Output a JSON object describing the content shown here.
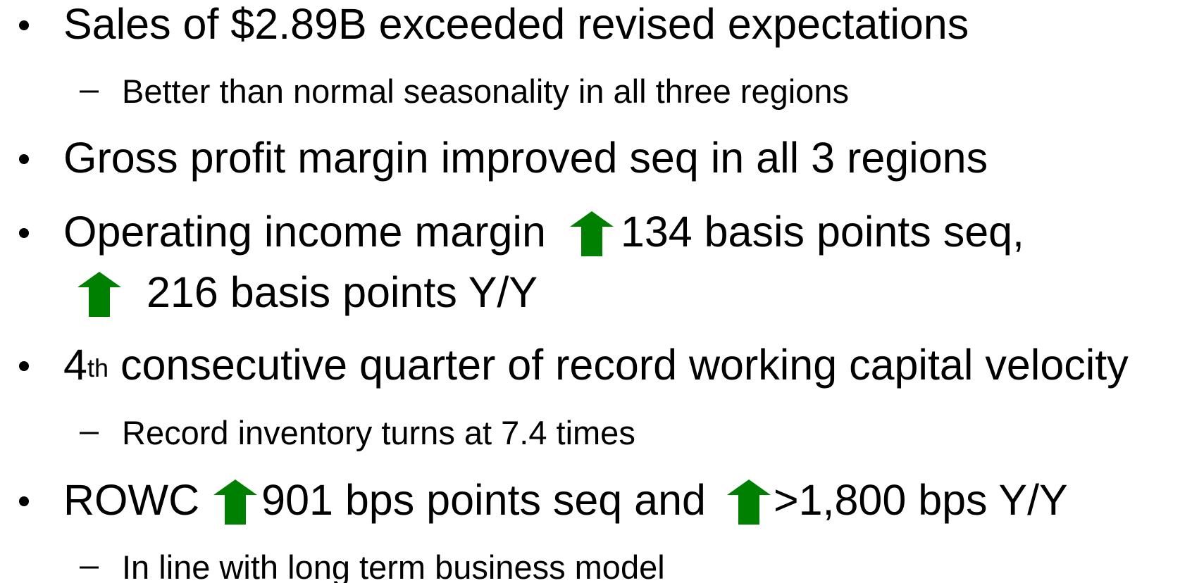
{
  "items": [
    {
      "text": "Sales of $2.89B exceeded revised expectations",
      "sub": [
        "Better than normal seasonality in all three regions"
      ]
    },
    {
      "text": "Gross profit margin improved seq in all 3 regions"
    },
    {
      "parts": [
        "Operating income margin",
        "134 basis points seq,",
        "216 basis points Y/Y"
      ]
    },
    {
      "number": "4",
      "superscript": "th",
      "text": "consecutive quarter of record working capital velocity",
      "sub": [
        "Record inventory turns at 7.4 times"
      ]
    },
    {
      "parts": [
        "ROWC",
        "901 bps points seq and",
        ">1,800 bps Y/Y"
      ],
      "sub": [
        "In line with long term business model"
      ]
    }
  ]
}
